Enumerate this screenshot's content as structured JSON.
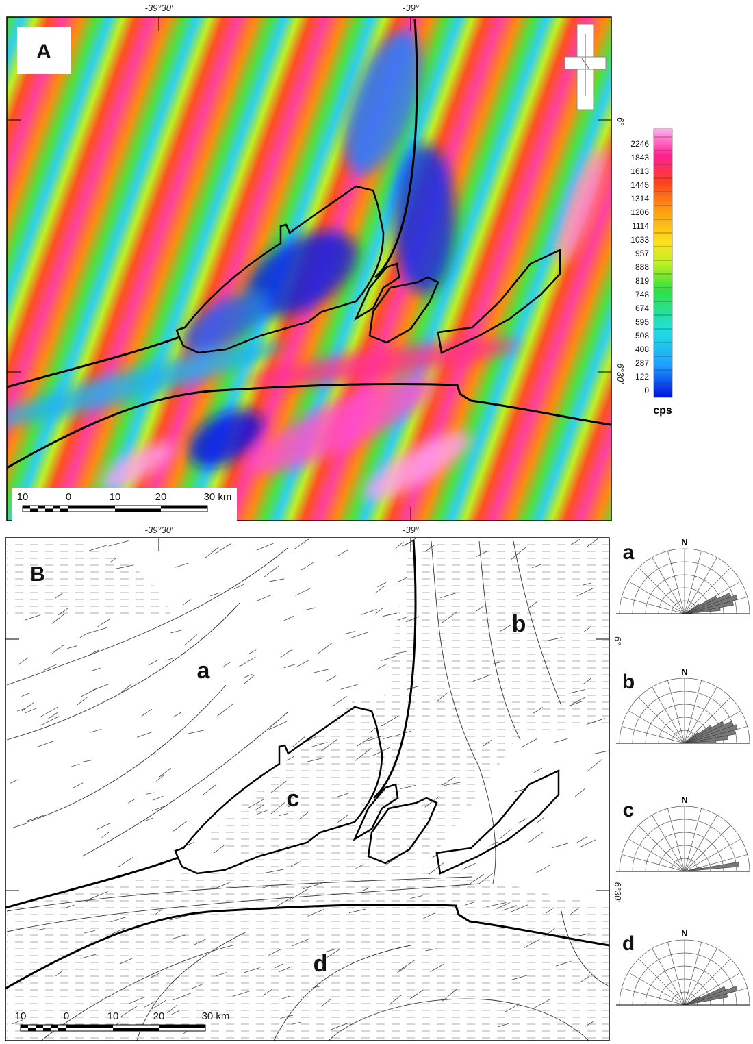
{
  "panel_a": {
    "label": "A",
    "x_labels": [
      "-39°30′",
      "-39°"
    ],
    "y_labels": [
      "-6°",
      "-6°30′"
    ],
    "colorbar": {
      "ticks": [
        "2246",
        "1843",
        "1613",
        "1445",
        "1314",
        "1206",
        "1114",
        "1033",
        "957",
        "888",
        "819",
        "748",
        "674",
        "595",
        "508",
        "408",
        "287",
        "122",
        "0"
      ],
      "unit": "cps"
    },
    "scale_bar": [
      "10",
      "0",
      "10",
      "20",
      "30 km"
    ]
  },
  "panel_b": {
    "label": "B",
    "x_labels": [
      "-39°30′",
      "-39°"
    ],
    "y_labels": [
      "-6°",
      "-6°30′"
    ],
    "domains": [
      "a",
      "b",
      "c",
      "d"
    ],
    "scale_bar": [
      "10",
      "0",
      "10",
      "20",
      "30 km"
    ]
  },
  "rose_diagrams": [
    {
      "label": "a",
      "north": "N"
    },
    {
      "label": "b",
      "north": "N"
    },
    {
      "label": "c",
      "north": "N"
    },
    {
      "label": "d",
      "north": "N"
    }
  ]
}
